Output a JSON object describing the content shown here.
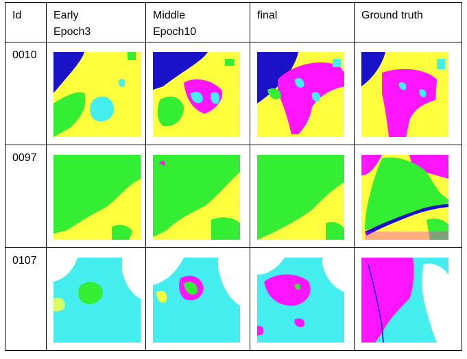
{
  "colors": {
    "yellow": "#ffff3d",
    "green": "#33ee33",
    "blue": "#1a12c8",
    "magenta": "#ff16ff",
    "cyan": "#44eeee",
    "white": "#ffffff"
  },
  "header": {
    "id": "Id",
    "early_line1": "Early",
    "early_line2": "Epoch3",
    "middle_line1": "Middle",
    "middle_line2": "Epoch10",
    "final": "final",
    "ground_truth": "Ground truth"
  },
  "rows": [
    {
      "id": "0010"
    },
    {
      "id": "0097"
    },
    {
      "id": "0107"
    }
  ]
}
